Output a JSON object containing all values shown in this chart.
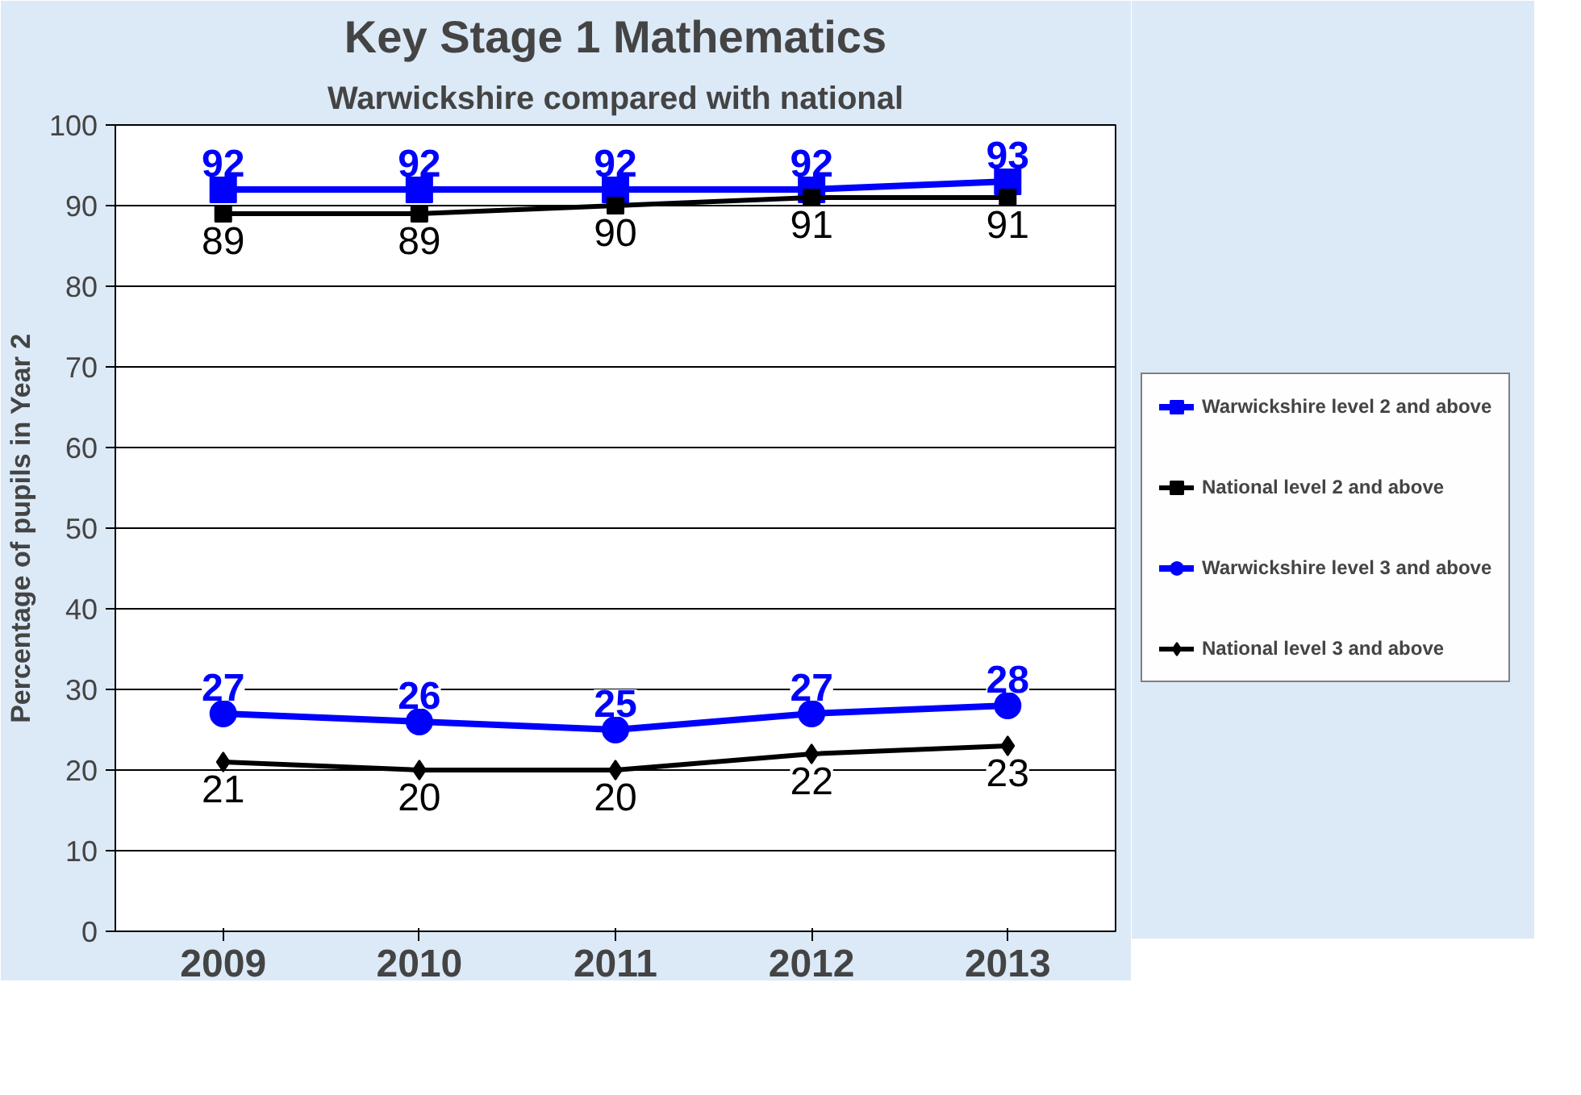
{
  "chart_data": {
    "type": "line",
    "title": "Key Stage 1 Mathematics",
    "subtitle": "Warwickshire compared with national",
    "ylabel": "Percentage of pupils in Year 2",
    "categories": [
      "2009",
      "2010",
      "2011",
      "2012",
      "2013"
    ],
    "series": [
      {
        "name": "Warwickshire level 2 and above",
        "color": "#0000ff",
        "marker": "square",
        "values": [
          92,
          92,
          92,
          92,
          93
        ]
      },
      {
        "name": "National level 2 and above",
        "color": "#000000",
        "marker": "square",
        "values": [
          89,
          89,
          90,
          91,
          91
        ]
      },
      {
        "name": "Warwickshire level 3 and above",
        "color": "#0000ff",
        "marker": "circle",
        "values": [
          27,
          26,
          25,
          27,
          28
        ]
      },
      {
        "name": "National level 3 and above",
        "color": "#000000",
        "marker": "diamond",
        "values": [
          21,
          20,
          20,
          22,
          23
        ]
      }
    ],
    "ylim": [
      0,
      100
    ],
    "yticks": [
      0,
      10,
      20,
      30,
      40,
      50,
      60,
      70,
      80,
      90,
      100
    ],
    "grid": "y",
    "legend": "right",
    "data_labels": true,
    "line_style": "solid"
  }
}
